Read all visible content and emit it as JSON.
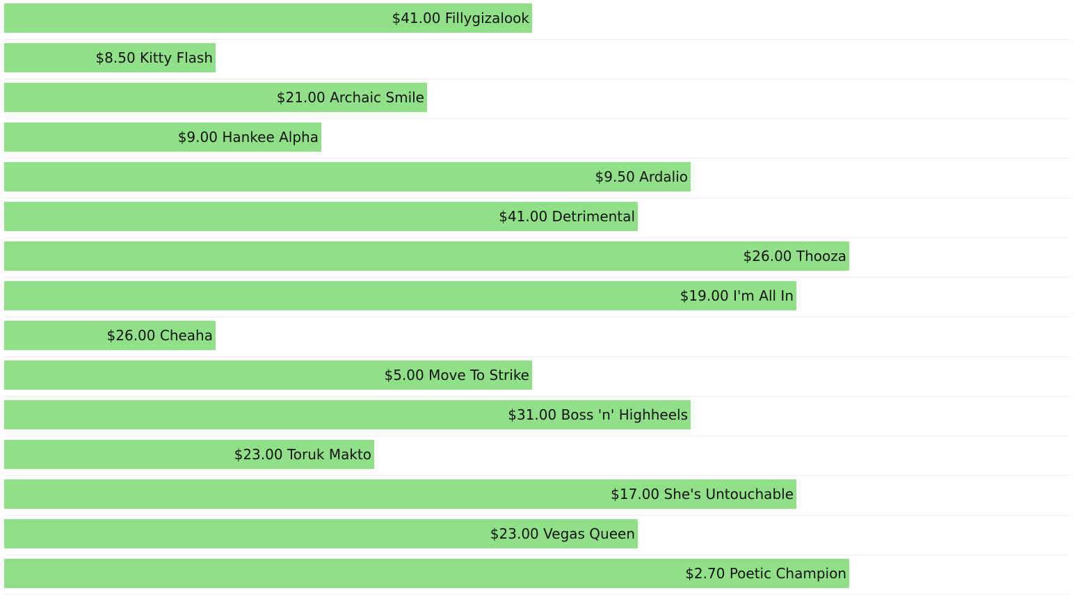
{
  "colors": {
    "bar": "#90e087",
    "divider": "#ececec",
    "text": "#111111",
    "background": "#ffffff"
  },
  "chart_data": {
    "type": "bar",
    "orientation": "horizontal",
    "title": "",
    "xlabel": "",
    "ylabel": "",
    "grid": false,
    "x_axis_visible": false,
    "value_unit": "relative bar length (unlabeled axis)",
    "categories": [
      "Fillygizalook",
      "Kitty Flash",
      "Archaic Smile",
      "Hankee Alpha",
      "Ardalio",
      "Detrimental",
      "Thooza",
      "I'm All In",
      "Cheaha",
      "Move To Strike",
      "Boss 'n' Highheels",
      "Toruk Makto",
      "She's Untouchable",
      "Vegas Queen",
      "Poetic Champion"
    ],
    "prices": [
      "$41.00",
      "$8.50",
      "$21.00",
      "$9.00",
      "$9.50",
      "$41.00",
      "$26.00",
      "$19.00",
      "$26.00",
      "$5.00",
      "$31.00",
      "$23.00",
      "$17.00",
      "$23.00",
      "$2.70"
    ],
    "labels": [
      "$41.00 Fillygizalook",
      "$8.50 Kitty Flash",
      "$21.00 Archaic Smile",
      "$9.00 Hankee Alpha",
      "$9.50 Ardalio",
      "$41.00 Detrimental",
      "$26.00 Thooza",
      "$19.00 I'm All In",
      "$26.00 Cheaha",
      "$5.00 Move To Strike",
      "$31.00 Boss 'n' Highheels",
      "$23.00 Toruk Makto",
      "$17.00 She's Untouchable",
      "$23.00 Vegas Queen",
      "$2.70 Poetic Champion"
    ],
    "values": [
      10,
      4,
      8,
      6,
      13,
      12,
      16,
      15,
      4,
      10,
      13,
      7,
      15,
      12,
      16
    ],
    "xlim": [
      0,
      20.2
    ]
  }
}
